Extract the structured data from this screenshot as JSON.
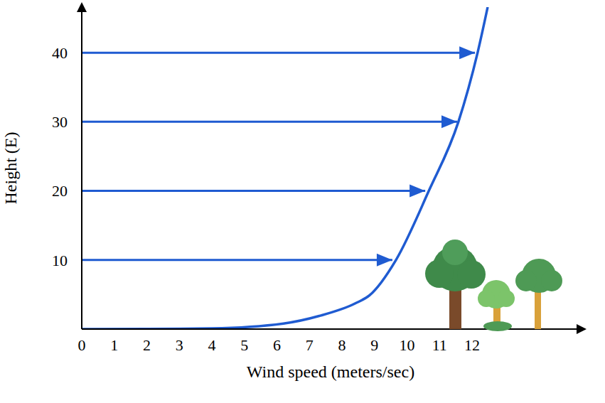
{
  "chart_data": {
    "type": "line",
    "x_label": "Wind speed (meters/sec)",
    "y_label": "Height (E)",
    "x": [
      0,
      2,
      4,
      6.2,
      7.3,
      8.4,
      8.85,
      9.66,
      10.67,
      11.58,
      12.17,
      12.48
    ],
    "values": [
      0,
      0.02,
      0.1,
      0.8,
      1.9,
      3.7,
      4.9,
      10,
      20,
      30,
      40,
      46.6
    ],
    "color": "#1f5bd1",
    "xlim": [
      0,
      15.3
    ],
    "xticks": [
      0,
      1,
      2,
      3,
      4,
      5,
      6,
      7,
      8,
      9,
      10,
      11,
      12
    ],
    "ylim": [
      0,
      46.6
    ],
    "yticks": [
      10,
      20,
      30,
      40
    ],
    "grid": false,
    "arrows": {
      "y": [
        10,
        20,
        30,
        40
      ],
      "x_end": [
        9.55,
        10.56,
        11.54,
        12.09
      ],
      "color": "#1f5bd1"
    }
  }
}
